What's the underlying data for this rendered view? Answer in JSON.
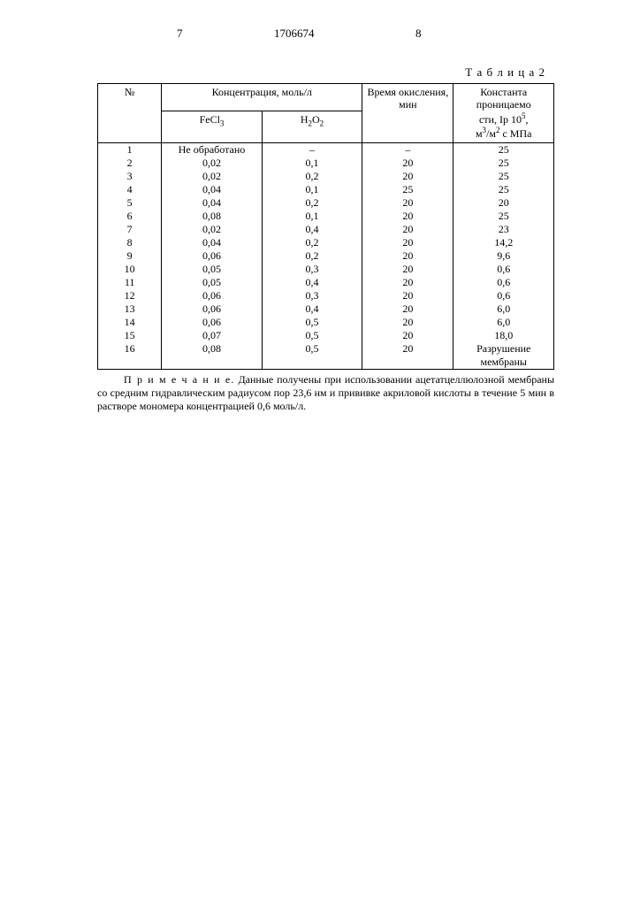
{
  "header": {
    "left_page": "7",
    "doc_number": "1706674",
    "right_page": "8"
  },
  "table_label": "Т а б л и ц а 2",
  "table": {
    "col_n": "№",
    "col_conc": "Концентрация, моль/л",
    "col_fecl3": "FeCl",
    "col_fecl3_sub": "3",
    "col_h2o2_h": "H",
    "col_h2o2_2a": "2",
    "col_h2o2_o": "O",
    "col_h2o2_2b": "2",
    "col_time": "Время окисле­ния, мин",
    "col_const_l1": "Константа",
    "col_const_l2": "проницаемо­",
    "col_const_l3a": "сти, Ip 10",
    "col_const_l3sup": "5",
    "col_const_l3b": ",",
    "col_const_l4a": "м",
    "col_const_l4sup1": "3",
    "col_const_l4b": "/м",
    "col_const_l4sup2": "2",
    "col_const_l4c": " с МПа",
    "rows": [
      {
        "n": "1",
        "fe": "Не обработа­но",
        "h": "–",
        "t": "–",
        "k": "25"
      },
      {
        "n": "2",
        "fe": "0,02",
        "h": "0,1",
        "t": "20",
        "k": "25"
      },
      {
        "n": "3",
        "fe": "0,02",
        "h": "0,2",
        "t": "20",
        "k": "25"
      },
      {
        "n": "4",
        "fe": "0,04",
        "h": "0,1",
        "t": "25",
        "k": "25"
      },
      {
        "n": "5",
        "fe": "0,04",
        "h": "0,2",
        "t": "20",
        "k": "20"
      },
      {
        "n": "6",
        "fe": "0,08",
        "h": "0,1",
        "t": "20",
        "k": "25"
      },
      {
        "n": "7",
        "fe": "0,02",
        "h": "0,4",
        "t": "20",
        "k": "23"
      },
      {
        "n": "8",
        "fe": "0,04",
        "h": "0,2",
        "t": "20",
        "k": "14,2"
      },
      {
        "n": "9",
        "fe": "0,06",
        "h": "0,2",
        "t": "20",
        "k": "9,6"
      },
      {
        "n": "10",
        "fe": "0,05",
        "h": "0,3",
        "t": "20",
        "k": "0,6"
      },
      {
        "n": "11",
        "fe": "0,05",
        "h": "0,4",
        "t": "20",
        "k": "0,6"
      },
      {
        "n": "12",
        "fe": "0,06",
        "h": "0,3",
        "t": "20",
        "k": "0,6"
      },
      {
        "n": "13",
        "fe": "0,06",
        "h": "0,4",
        "t": "20",
        "k": "6,0"
      },
      {
        "n": "14",
        "fe": "0,06",
        "h": "0,5",
        "t": "20",
        "k": "6,0"
      },
      {
        "n": "15",
        "fe": "0,07",
        "h": "0,5",
        "t": "20",
        "k": "18,0"
      },
      {
        "n": "16",
        "fe": "0,08",
        "h": "0,5",
        "t": "20",
        "k": "Разрушение мембраны"
      }
    ]
  },
  "note": {
    "label": "П р и м е ч а н и е.",
    "text": " Данные получены при использовании ацетатцеллюлоз­ной мембраны со средним гидравлическим радиусом пор 23,6 нм и прививке акриловой кислоты в течение  5 мин  в    растворе мономера концентрацией 0,6 моль/л."
  }
}
